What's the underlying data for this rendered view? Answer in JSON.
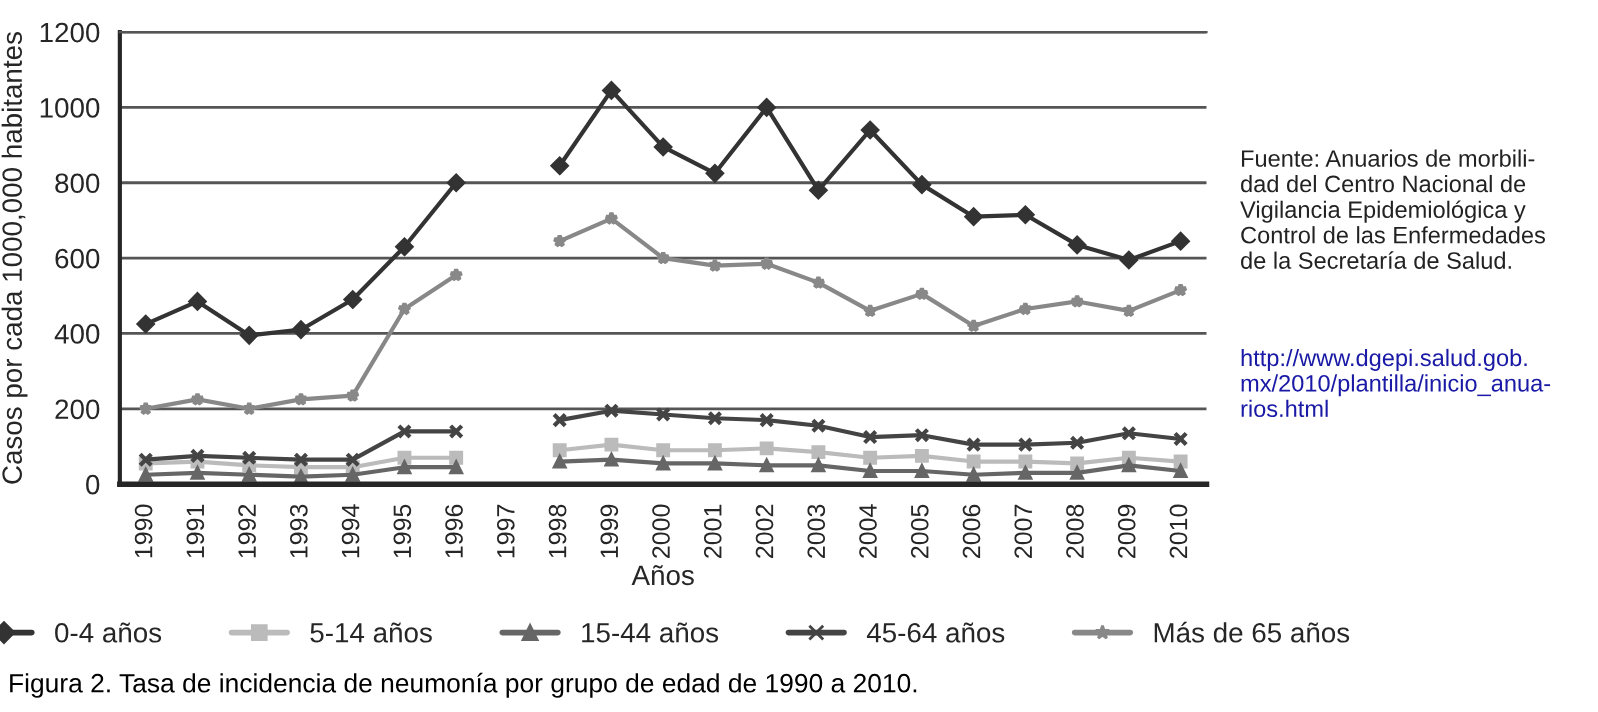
{
  "chart_data": {
    "type": "line",
    "xlabel": "Años",
    "ylabel": "Casos por cada 1000,000 habitantes",
    "categories": [
      "1990",
      "1991",
      "1992",
      "1993",
      "1994",
      "1995",
      "1996",
      "1997",
      "1998",
      "1999",
      "2000",
      "2001",
      "2002",
      "2003",
      "2004",
      "2005",
      "2006",
      "2007",
      "2008",
      "2009",
      "2010"
    ],
    "series": [
      {
        "name": "0-4 años",
        "color": "#333333",
        "marker": "diamond",
        "values": [
          425,
          485,
          395,
          410,
          490,
          630,
          800,
          null,
          845,
          1045,
          895,
          825,
          1000,
          780,
          940,
          795,
          710,
          715,
          635,
          595,
          645
        ]
      },
      {
        "name": "5-14 años",
        "color": "#bbbbbb",
        "marker": "square",
        "values": [
          55,
          60,
          50,
          45,
          45,
          70,
          70,
          null,
          90,
          105,
          90,
          90,
          95,
          85,
          70,
          75,
          60,
          60,
          55,
          70,
          60
        ]
      },
      {
        "name": "15-44 años",
        "color": "#666666",
        "marker": "triangle",
        "values": [
          25,
          30,
          25,
          20,
          25,
          45,
          45,
          null,
          60,
          65,
          55,
          55,
          50,
          50,
          35,
          35,
          25,
          30,
          30,
          50,
          35
        ]
      },
      {
        "name": "45-64 años",
        "color": "#444444",
        "marker": "cross",
        "values": [
          65,
          75,
          70,
          65,
          65,
          140,
          140,
          null,
          170,
          195,
          185,
          175,
          170,
          155,
          125,
          130,
          105,
          105,
          110,
          135,
          120
        ]
      },
      {
        "name": "Más de 65 años",
        "color": "#888888",
        "marker": "star",
        "values": [
          200,
          225,
          200,
          225,
          235,
          465,
          555,
          null,
          645,
          705,
          600,
          580,
          585,
          535,
          460,
          505,
          420,
          465,
          485,
          460,
          515
        ]
      }
    ],
    "ylim": [
      0,
      1200
    ],
    "yticks": [
      0,
      200,
      400,
      600,
      800,
      1000,
      1200
    ],
    "grid": "y",
    "legend": "bottom",
    "line_style": "solid",
    "annotations": [
      "Fuente: Anuarios de morbili-\ndad del Centro Nacional de\nVigilancia Epidemiológica y\nControl de las Enfermedades\nde la Secretaría de Salud.",
      "http://www.dgepi.salud.gob.\nmx/2010/plantilla/inicio_anua-\nrios.html",
      "Figura 2. Tasa de incidencia de neumonía por grupo de edad de 1990 a 2010."
    ]
  }
}
